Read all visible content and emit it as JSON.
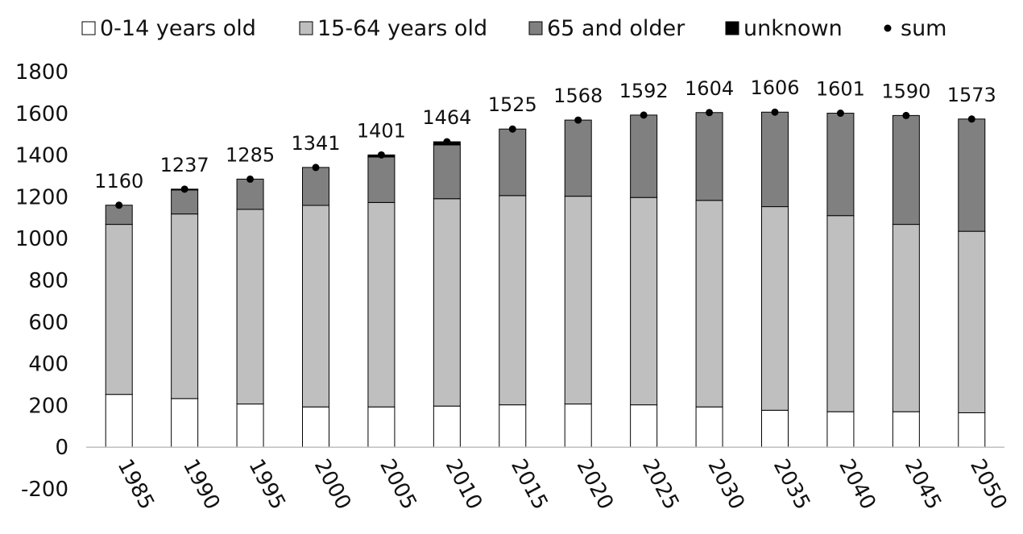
{
  "chart_data": {
    "type": "bar",
    "stacked": true,
    "categories": [
      "1985",
      "1990",
      "1995",
      "2000",
      "2005",
      "2010",
      "2015",
      "2020",
      "2025",
      "2030",
      "2035",
      "2040",
      "2045",
      "2050"
    ],
    "series": [
      {
        "name": "0-14 years old",
        "color": "#ffffff",
        "values": [
          253,
          233,
          207,
          193,
          193,
          197,
          203,
          207,
          203,
          193,
          177,
          170,
          170,
          165
        ]
      },
      {
        "name": "15-64 years old",
        "color": "#bfbfbf",
        "values": [
          815,
          885,
          933,
          966,
          980,
          994,
          1003,
          996,
          994,
          990,
          976,
          940,
          898,
          870
        ]
      },
      {
        "name": "65 and older",
        "color": "#808080",
        "values": [
          92,
          115,
          145,
          182,
          218,
          258,
          319,
          365,
          395,
          421,
          453,
          491,
          522,
          538
        ]
      },
      {
        "name": "unknown",
        "color": "#000000",
        "values": [
          0,
          4,
          0,
          0,
          10,
          15,
          0,
          0,
          0,
          0,
          0,
          0,
          0,
          0
        ]
      }
    ],
    "sum": {
      "name": "sum",
      "values": [
        1160,
        1237,
        1285,
        1341,
        1401,
        1464,
        1525,
        1568,
        1592,
        1604,
        1606,
        1601,
        1590,
        1573
      ]
    },
    "ylim": [
      -200,
      1800
    ],
    "yticks": [
      -200,
      0,
      200,
      400,
      600,
      800,
      1000,
      1200,
      1400,
      1600,
      1800
    ],
    "grid": false,
    "legend": "top",
    "title": "",
    "xlabel": "",
    "ylabel": ""
  }
}
